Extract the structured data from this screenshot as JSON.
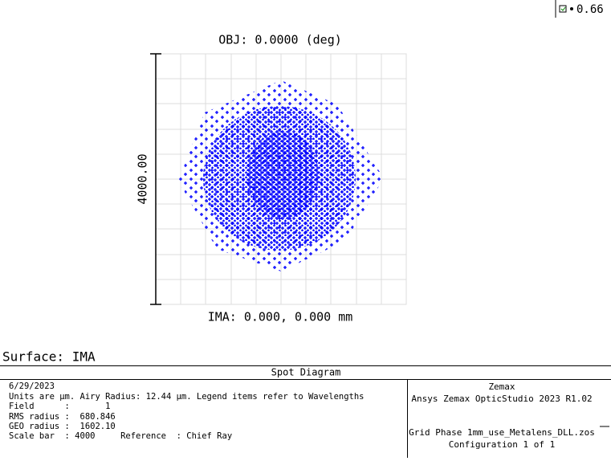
{
  "header": {
    "value": "0.66"
  },
  "plot": {
    "title": "OBJ: 0.0000 (deg)",
    "scale_label": "4000.00",
    "footer": "IMA: 0.000, 0.000 mm"
  },
  "surface": "Surface: IMA",
  "info": {
    "title": "Spot Diagram",
    "left": [
      "6/29/2023",
      "Units are µm. Airy Radius: 12.44 µm. Legend items refer to Wavelengths",
      "Field      :       1",
      "RMS radius :  680.846",
      "GEO radius :  1602.10",
      "Scale bar  : 4000     Reference  : Chief Ray"
    ],
    "right": [
      "Zemax",
      "Ansys Zemax OpticStudio 2023 R1.02",
      "Grid Phase 1mm_use_Metalens_DLL.zos",
      "Configuration 1 of 1"
    ]
  }
}
